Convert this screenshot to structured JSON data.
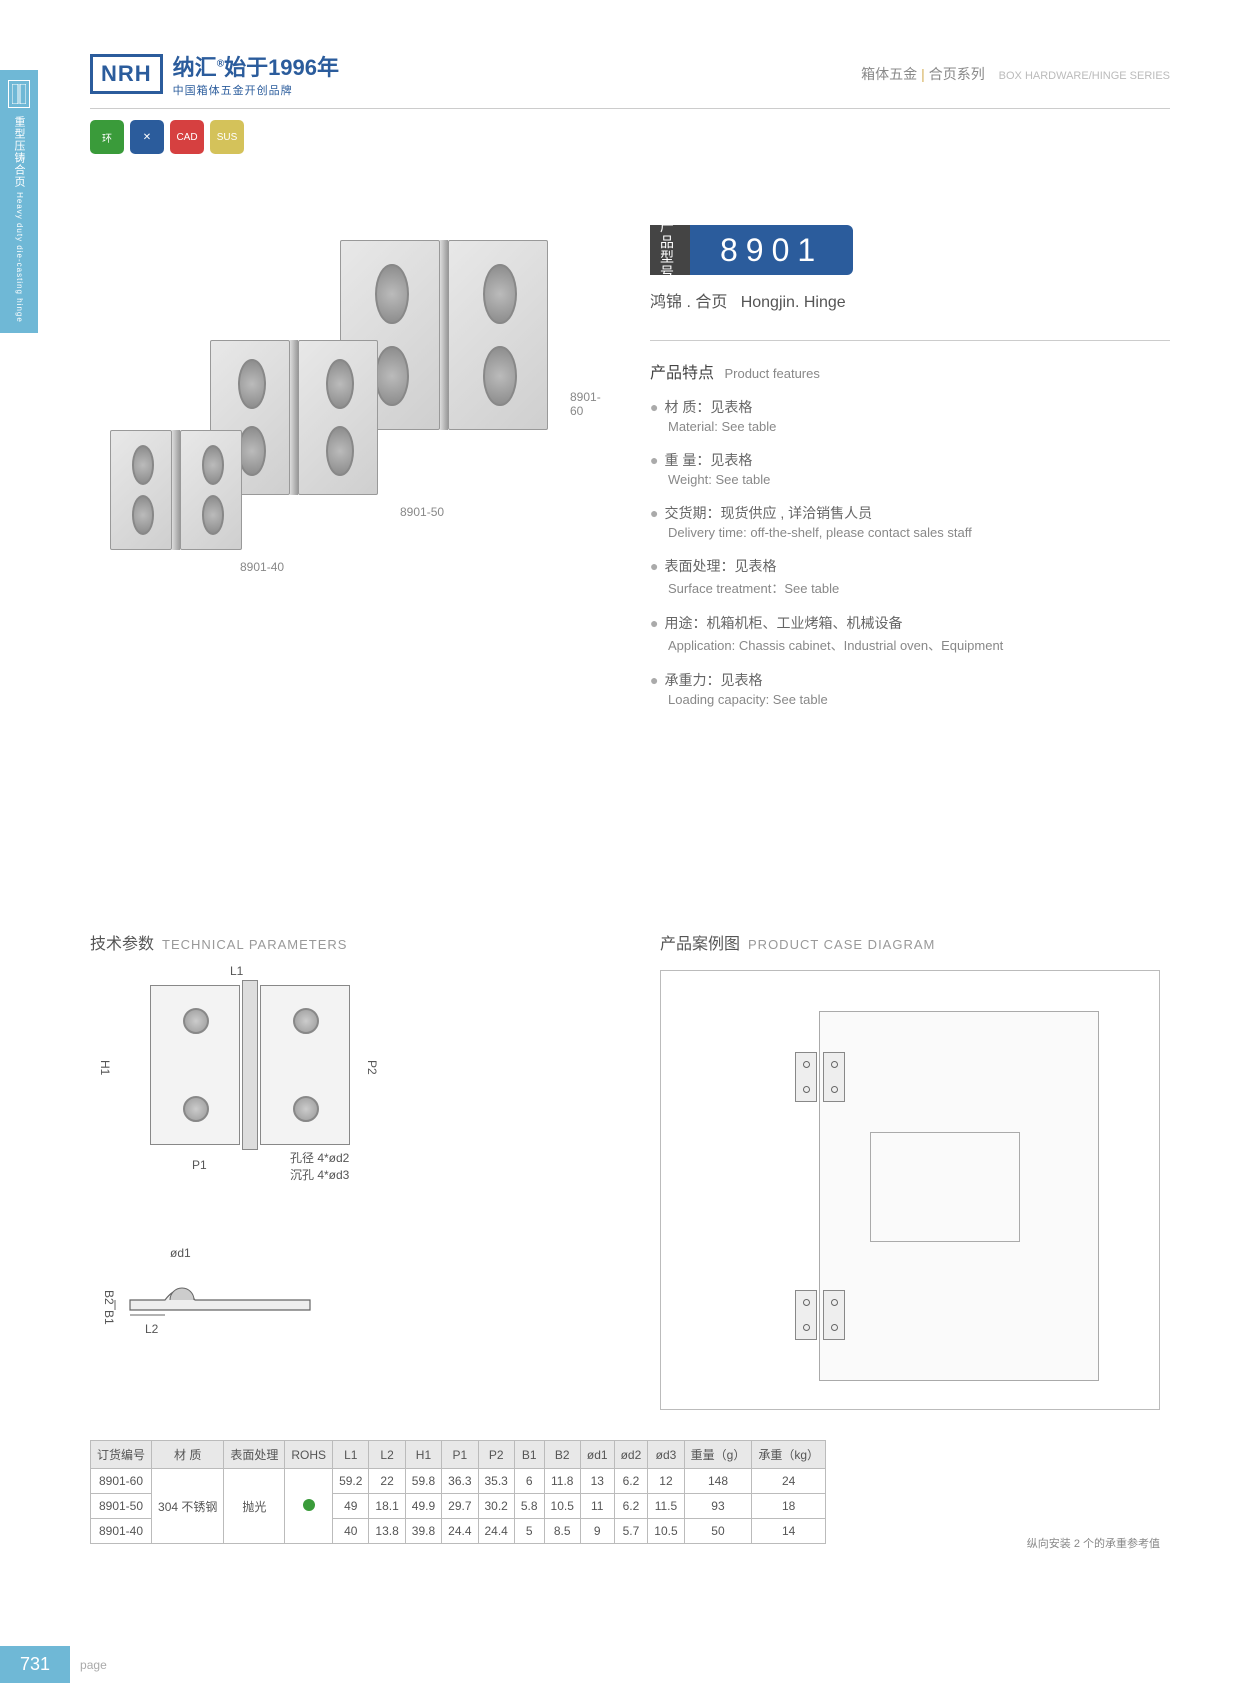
{
  "side_tab": {
    "cn": "重型压铸合页",
    "en": "Heavy duty die-casting hinge"
  },
  "logo": {
    "mark": "NRH",
    "line1_a": "纳汇",
    "line1_b": "始于1996年",
    "line2": "中国箱体五金开创品牌"
  },
  "header_right": {
    "cn1": "箱体五金",
    "cn2": "合页系列",
    "en": "BOX HARDWARE/HINGE SERIES"
  },
  "badges": [
    {
      "bg": "#3a9b3a",
      "txt": "环"
    },
    {
      "bg": "#2b5c9c",
      "txt": "✕"
    },
    {
      "bg": "#d64040",
      "txt": "CAD"
    },
    {
      "bg": "#d4c25a",
      "txt": "SUS"
    }
  ],
  "hinge_labels": {
    "h60": "8901-60",
    "h50": "8901-50",
    "h40": "8901-40"
  },
  "model": {
    "lbl": "产品\n型号",
    "num": "8901",
    "sub_cn": "鸿锦 . 合页",
    "sub_en": "Hongjin. Hinge"
  },
  "features_title": {
    "cn": "产品特点",
    "en": "Product features"
  },
  "features": [
    {
      "cn": "材 质：见表格",
      "en": "Material: See table"
    },
    {
      "cn": "重 量：见表格",
      "en": "Weight: See table"
    },
    {
      "cn": "交货期：现货供应 , 详洽销售人员",
      "en": "Delivery time: off-the-shelf, please contact sales staff"
    },
    {
      "cn": "表面处理：见表格",
      "en": "Surface treatment：See table"
    },
    {
      "cn": "用途：机箱机柜、工业烤箱、机械设备",
      "en": "Application: Chassis cabinet、Industrial oven、Equipment"
    },
    {
      "cn": "承重力：见表格",
      "en": "Loading capacity: See table"
    }
  ],
  "tech_title": {
    "cn": "技术参数",
    "en": "TECHNICAL PARAMETERS"
  },
  "case_title": {
    "cn": "产品案例图",
    "en": "PRODUCT CASE DIAGRAM"
  },
  "dims": {
    "L1": "L1",
    "H1": "H1",
    "P1": "P1",
    "P2": "P2",
    "od1": "ød1",
    "B1": "B1",
    "B2": "B2",
    "L2": "L2"
  },
  "hole_note": {
    "l1": "孔径 4*ød2",
    "l2": "沉孔 4*ød3"
  },
  "table": {
    "headers": [
      "订货编号",
      "材 质",
      "表面处理",
      "ROHS",
      "L1",
      "L2",
      "H1",
      "P1",
      "P2",
      "B1",
      "B2",
      "ød1",
      "ød2",
      "ød3",
      "重量（g）",
      "承重（kg）"
    ],
    "material": "304 不锈钢",
    "surface": "抛光",
    "rows": [
      [
        "8901-60",
        "59.2",
        "22",
        "59.8",
        "36.3",
        "35.3",
        "6",
        "11.8",
        "13",
        "6.2",
        "12",
        "148",
        "24"
      ],
      [
        "8901-50",
        "49",
        "18.1",
        "49.9",
        "29.7",
        "30.2",
        "5.8",
        "10.5",
        "11",
        "6.2",
        "11.5",
        "93",
        "18"
      ],
      [
        "8901-40",
        "40",
        "13.8",
        "39.8",
        "24.4",
        "24.4",
        "5",
        "8.5",
        "9",
        "5.7",
        "10.5",
        "50",
        "14"
      ]
    ]
  },
  "table_note": "纵向安装 2 个的承重参考值",
  "page": {
    "num": "731",
    "label": "page"
  }
}
